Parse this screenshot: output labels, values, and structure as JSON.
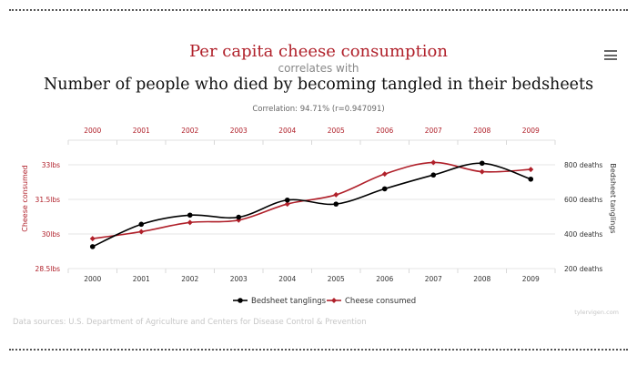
{
  "title": {
    "line1": "Per capita cheese consumption",
    "line2": "correlates with",
    "line3": "Number of people who died by becoming tangled in their bedsheets",
    "correlation": "Correlation: 94.71% (r=0.947091)"
  },
  "footer": {
    "source": "Data sources: U.S. Department of Agriculture and Centers for Disease Control & Prevention",
    "credit": "tylervigen.com"
  },
  "chart_data": {
    "type": "line",
    "x": [
      "2000",
      "2001",
      "2002",
      "2003",
      "2004",
      "2005",
      "2006",
      "2007",
      "2008",
      "2009"
    ],
    "series": [
      {
        "name": "Bedsheet tanglings",
        "axis": "right",
        "color": "#000000",
        "values": [
          327,
          456,
          509,
          497,
          596,
          573,
          661,
          741,
          809,
          717
        ]
      },
      {
        "name": "Cheese consumed",
        "axis": "left",
        "color": "#b0202a",
        "values": [
          29.8,
          30.1,
          30.5,
          30.6,
          31.3,
          31.7,
          32.6,
          33.1,
          32.7,
          32.8
        ]
      }
    ],
    "y_left": {
      "label": "Cheese consumed",
      "range": [
        28.5,
        33.0
      ],
      "ticks": [
        28.5,
        30,
        31.5,
        33
      ],
      "tick_labels": [
        "28.5lbs",
        "30lbs",
        "31.5lbs",
        "33lbs"
      ],
      "color": "#b0202a"
    },
    "y_right": {
      "label": "Bedsheet tanglings",
      "range": [
        200,
        800
      ],
      "ticks": [
        200,
        400,
        600,
        800
      ],
      "tick_labels": [
        "200 deaths",
        "400 deaths",
        "600 deaths",
        "800 deaths"
      ],
      "color": "#333333"
    },
    "top_axis_color": "#b0202a",
    "grid": true,
    "legend_position": "bottom-center"
  }
}
